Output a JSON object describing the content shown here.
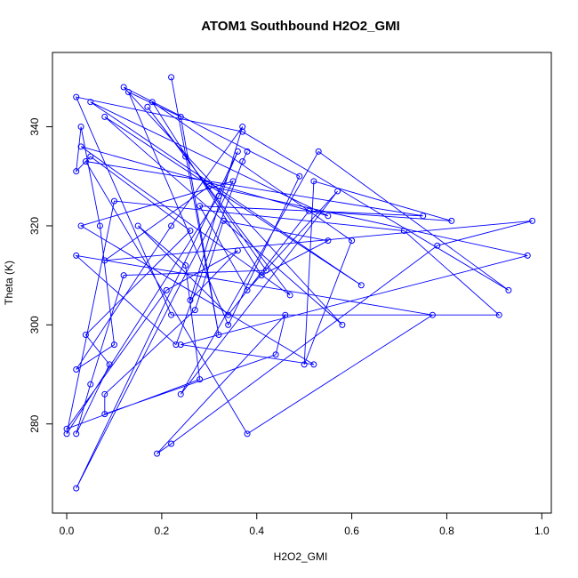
{
  "chart_data": {
    "type": "line",
    "title": "ATOM1 Southbound H2O2_GMI",
    "xlabel": "H2O2_GMI",
    "ylabel": "Theta (K)",
    "xlim": [
      -0.03,
      1.02
    ],
    "ylim": [
      262,
      355
    ],
    "xticks": [
      "0.0",
      "0.2",
      "0.4",
      "0.6",
      "0.8",
      "1.0"
    ],
    "yticks": [
      "280",
      "300",
      "320",
      "340"
    ],
    "line_color": "#0000FF",
    "grid": false,
    "legend": "none",
    "series": [
      {
        "marker": "open-circle",
        "x": [
          0.22,
          0.32,
          0.24,
          0.13,
          0.34,
          0.49,
          0.12,
          0.58,
          0.08,
          0.62,
          0.05,
          0.55,
          0.03,
          0.47,
          0.17,
          0.25,
          0.42,
          0.12,
          0.05,
          0.02,
          0.09,
          0.04,
          0.26,
          0.05,
          0.02,
          0.03,
          0.07,
          0.1,
          0.02,
          0.22,
          0.37,
          0.26,
          0.36,
          0.21,
          0.0,
          0.28,
          0.25,
          0.15,
          0.34,
          0.51,
          0.81,
          0.52,
          0.5,
          0.6,
          0.18,
          0.41,
          0.55,
          0.33,
          0.27,
          0.08,
          0.08,
          0.44,
          0.46,
          0.19,
          0.22,
          0.78,
          0.98,
          0.08,
          0.3,
          0.97,
          0.24,
          0.52,
          0.03,
          0.35,
          0.02,
          0.36,
          0.32,
          0.0,
          0.1,
          0.71,
          0.91,
          0.22,
          0.02,
          0.37,
          0.93,
          0.53,
          0.24,
          0.57,
          0.38,
          0.28,
          0.75,
          0.04,
          0.38,
          0.77,
          0.02,
          0.23,
          0.37,
          0.38
        ],
        "y": [
          350,
          298,
          342,
          347,
          300,
          330,
          348,
          300,
          342,
          308,
          345,
          322,
          336,
          306,
          344,
          334,
          311,
          310,
          288,
          278,
          292,
          298,
          319,
          334,
          331,
          340,
          320,
          296,
          291,
          320,
          340,
          305,
          315,
          307,
          279,
          289,
          312,
          320,
          302,
          323,
          321,
          329,
          292,
          317,
          345,
          310,
          317,
          321,
          303,
          286,
          282,
          294,
          302,
          274,
          276,
          316,
          321,
          313,
          328,
          314,
          296,
          292,
          320,
          329,
          267,
          335,
          326,
          278,
          325,
          319,
          302,
          302,
          346,
          339,
          307,
          335,
          286,
          327,
          307,
          324,
          322,
          333,
          278,
          302,
          314,
          296,
          333,
          335
        ]
      }
    ]
  }
}
